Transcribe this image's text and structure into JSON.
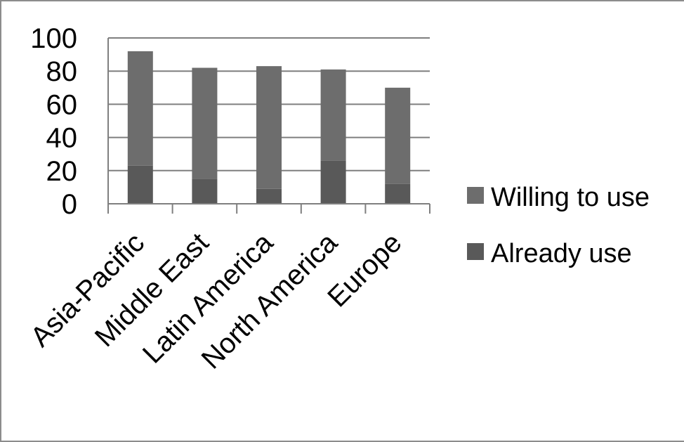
{
  "chart_data": {
    "type": "bar",
    "stacked": true,
    "categories": [
      "Asia-Pacific",
      "Middle East",
      "Latin America",
      "North America",
      "Europe"
    ],
    "series": [
      {
        "name": "Already use",
        "values": [
          23,
          15,
          9,
          26,
          12
        ],
        "color": "#595959"
      },
      {
        "name": "Willing to use",
        "values": [
          69,
          67,
          74,
          55,
          58
        ],
        "color": "#6d6d6d"
      }
    ],
    "ylim": [
      0,
      100
    ],
    "yticks": [
      "0",
      "20",
      "40",
      "60",
      "80",
      "100"
    ],
    "grid": true,
    "legend": "right",
    "legend_order": [
      "Willing to use",
      "Already use"
    ],
    "xlabel": "",
    "ylabel": "",
    "title": ""
  }
}
